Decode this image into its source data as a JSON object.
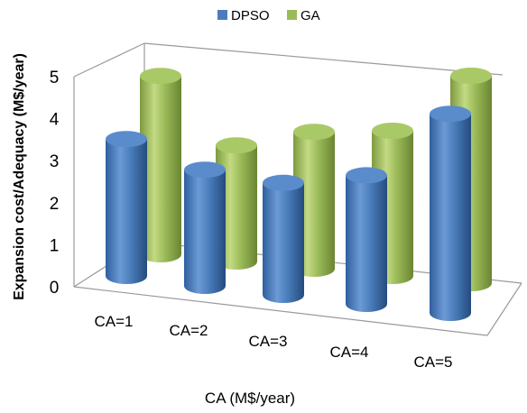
{
  "chart_data": {
    "type": "bar",
    "style": "3d-cylinder",
    "categories": [
      "CA=1",
      "CA=2",
      "CA=3",
      "CA=4",
      "CA=5"
    ],
    "series": [
      {
        "name": "DPSO",
        "color": "#4a7ebb",
        "values": [
          3.3,
          2.8,
          2.7,
          3.1,
          4.8
        ]
      },
      {
        "name": "GA",
        "color": "#9bbb59",
        "values": [
          4.3,
          2.8,
          3.3,
          3.5,
          5.0
        ]
      }
    ],
    "xlabel": "CA (M$/year)",
    "ylabel": "Expansion cost/Adequacy (M$/year)",
    "ylim": [
      0,
      5
    ],
    "yticks": [
      "0",
      "1",
      "2",
      "3",
      "4",
      "5"
    ],
    "grid": false,
    "legend": "top"
  }
}
